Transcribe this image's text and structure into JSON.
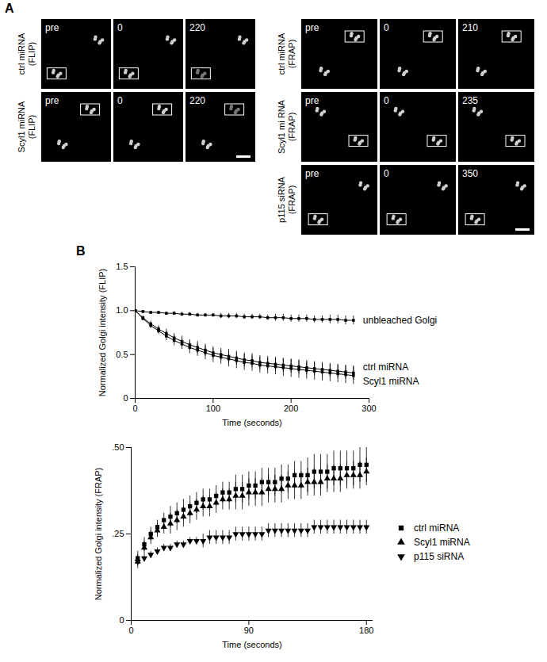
{
  "figure": {
    "panel_a": {
      "letter": "A",
      "groups": [
        {
          "rows": [
            {
              "label": "ctrl miRNA (FLIP)",
              "frames": [
                "pre",
                "0",
                "220"
              ]
            },
            {
              "label": "Scyl1 miRNA (FLIP)",
              "frames": [
                "pre",
                "0",
                "220"
              ]
            }
          ]
        },
        {
          "rows": [
            {
              "label": "ctrl miRNA (FRAP)",
              "frames": [
                "pre",
                "0",
                "210"
              ]
            },
            {
              "label": "Scyl1 mi RNA (FRAP)",
              "frames": [
                "pre",
                "0",
                "235"
              ]
            },
            {
              "label": "p115 siRNA (FRAP)",
              "frames": [
                "pre",
                "0",
                "350"
              ]
            }
          ]
        }
      ]
    },
    "panel_b": {
      "letter": "B"
    }
  },
  "chart_data": [
    {
      "type": "line",
      "x_label": "Time (seconds)",
      "y_label": "Normalized Golgi intensity (FLIP)",
      "x": [
        0,
        10,
        20,
        30,
        40,
        50,
        60,
        70,
        80,
        90,
        100,
        110,
        120,
        130,
        140,
        150,
        160,
        170,
        180,
        190,
        200,
        210,
        220,
        230,
        240,
        250,
        260,
        270,
        280
      ],
      "xlim": [
        0,
        300
      ],
      "xticks": [
        0,
        100,
        200,
        300
      ],
      "ylim": [
        0,
        1.5
      ],
      "yticks": [
        0,
        0.5,
        {
          "value": 1,
          "label": "1.0"
        },
        1.5
      ],
      "marker": "square",
      "series": [
        {
          "name": "unbleached Golgi",
          "color": "#000000",
          "values": [
            1.0,
            0.99,
            0.98,
            0.98,
            0.97,
            0.97,
            0.96,
            0.96,
            0.95,
            0.95,
            0.95,
            0.94,
            0.94,
            0.94,
            0.93,
            0.93,
            0.93,
            0.92,
            0.92,
            0.92,
            0.91,
            0.91,
            0.91,
            0.9,
            0.9,
            0.9,
            0.9,
            0.89,
            0.89
          ],
          "errors": [
            0,
            0.01,
            0.01,
            0.01,
            0.01,
            0.02,
            0.02,
            0.02,
            0.02,
            0.02,
            0.02,
            0.03,
            0.03,
            0.03,
            0.03,
            0.03,
            0.03,
            0.03,
            0.04,
            0.04,
            0.04,
            0.04,
            0.04,
            0.04,
            0.04,
            0.05,
            0.05,
            0.05,
            0.05
          ]
        },
        {
          "name": "ctrl miRNA",
          "color": "#000000",
          "values": [
            1.0,
            0.92,
            0.85,
            0.79,
            0.74,
            0.69,
            0.65,
            0.61,
            0.58,
            0.55,
            0.52,
            0.5,
            0.48,
            0.46,
            0.44,
            0.43,
            0.41,
            0.4,
            0.39,
            0.38,
            0.37,
            0.36,
            0.35,
            0.34,
            0.33,
            0.32,
            0.31,
            0.3,
            0.29
          ],
          "errors": [
            0,
            0.02,
            0.03,
            0.04,
            0.05,
            0.05,
            0.06,
            0.06,
            0.07,
            0.07,
            0.07,
            0.07,
            0.08,
            0.08,
            0.08,
            0.08,
            0.08,
            0.08,
            0.08,
            0.08,
            0.08,
            0.08,
            0.08,
            0.08,
            0.08,
            0.08,
            0.08,
            0.08,
            0.08
          ]
        },
        {
          "name": "Scyl1 miRNA",
          "color": "#000000",
          "values": [
            1.0,
            0.91,
            0.83,
            0.77,
            0.71,
            0.66,
            0.62,
            0.58,
            0.55,
            0.52,
            0.49,
            0.47,
            0.45,
            0.43,
            0.41,
            0.4,
            0.38,
            0.37,
            0.36,
            0.35,
            0.34,
            0.33,
            0.32,
            0.31,
            0.3,
            0.29,
            0.28,
            0.27,
            0.26
          ],
          "errors": [
            0,
            0.02,
            0.03,
            0.04,
            0.05,
            0.06,
            0.06,
            0.07,
            0.07,
            0.08,
            0.08,
            0.08,
            0.09,
            0.09,
            0.09,
            0.09,
            0.09,
            0.09,
            0.09,
            0.1,
            0.1,
            0.1,
            0.1,
            0.1,
            0.1,
            0.1,
            0.1,
            0.1,
            0.1
          ]
        }
      ]
    },
    {
      "type": "scatter",
      "x_label": "Time (seconds)",
      "y_label": "Normalized Golgi intensity (FRAP)",
      "x": [
        5,
        10,
        15,
        20,
        25,
        30,
        35,
        40,
        45,
        50,
        55,
        60,
        65,
        70,
        75,
        80,
        85,
        90,
        95,
        100,
        105,
        110,
        115,
        120,
        125,
        130,
        135,
        140,
        145,
        150,
        155,
        160,
        165,
        170,
        175,
        180
      ],
      "xlim": [
        0,
        185
      ],
      "xticks": [
        0,
        90,
        180
      ],
      "ylim": [
        0,
        0.5
      ],
      "yticks": [
        0,
        {
          "value": 0.25,
          "label": ".25"
        },
        {
          "value": 0.5,
          "label": ".50"
        }
      ],
      "legend": "right",
      "series": [
        {
          "name": "ctrl miRNA",
          "color": "#000000",
          "marker": "square",
          "values": [
            0.18,
            0.22,
            0.25,
            0.27,
            0.29,
            0.3,
            0.31,
            0.32,
            0.33,
            0.34,
            0.35,
            0.35,
            0.36,
            0.37,
            0.37,
            0.38,
            0.38,
            0.39,
            0.39,
            0.4,
            0.4,
            0.4,
            0.41,
            0.41,
            0.42,
            0.42,
            0.42,
            0.43,
            0.43,
            0.43,
            0.44,
            0.44,
            0.44,
            0.44,
            0.45,
            0.45
          ],
          "errors": [
            0.02,
            0.02,
            0.02,
            0.02,
            0.02,
            0.03,
            0.03,
            0.03,
            0.03,
            0.03,
            0.03,
            0.03,
            0.03,
            0.03,
            0.03,
            0.04,
            0.04,
            0.04,
            0.04,
            0.04,
            0.04,
            0.04,
            0.04,
            0.04,
            0.04,
            0.04,
            0.05,
            0.05,
            0.05,
            0.05,
            0.05,
            0.05,
            0.05,
            0.05,
            0.05,
            0.05
          ]
        },
        {
          "name": "Scyl1 miRNA",
          "color": "#000000",
          "marker": "triangle",
          "values": [
            0.17,
            0.21,
            0.24,
            0.26,
            0.27,
            0.28,
            0.29,
            0.3,
            0.31,
            0.32,
            0.33,
            0.33,
            0.34,
            0.35,
            0.35,
            0.36,
            0.36,
            0.37,
            0.37,
            0.37,
            0.38,
            0.38,
            0.38,
            0.39,
            0.39,
            0.39,
            0.4,
            0.4,
            0.4,
            0.41,
            0.41,
            0.41,
            0.42,
            0.42,
            0.42,
            0.43
          ],
          "errors": [
            0.02,
            0.02,
            0.02,
            0.02,
            0.02,
            0.03,
            0.03,
            0.03,
            0.03,
            0.03,
            0.03,
            0.03,
            0.03,
            0.03,
            0.03,
            0.04,
            0.04,
            0.04,
            0.04,
            0.04,
            0.04,
            0.04,
            0.04,
            0.04,
            0.04,
            0.04,
            0.04,
            0.04,
            0.04,
            0.04,
            0.04,
            0.04,
            0.04,
            0.04,
            0.04,
            0.04
          ]
        },
        {
          "name": "p115 siRNA",
          "color": "#000000",
          "marker": "triangle-down",
          "values": [
            0.17,
            0.18,
            0.19,
            0.2,
            0.21,
            0.21,
            0.22,
            0.22,
            0.23,
            0.23,
            0.23,
            0.24,
            0.24,
            0.24,
            0.24,
            0.25,
            0.25,
            0.25,
            0.25,
            0.25,
            0.26,
            0.26,
            0.26,
            0.26,
            0.26,
            0.26,
            0.26,
            0.27,
            0.27,
            0.27,
            0.27,
            0.27,
            0.27,
            0.27,
            0.27,
            0.27
          ],
          "errors": [
            0.01,
            0.01,
            0.01,
            0.01,
            0.01,
            0.01,
            0.01,
            0.01,
            0.01,
            0.01,
            0.02,
            0.02,
            0.02,
            0.02,
            0.02,
            0.02,
            0.02,
            0.02,
            0.02,
            0.02,
            0.02,
            0.02,
            0.02,
            0.02,
            0.02,
            0.02,
            0.02,
            0.02,
            0.02,
            0.02,
            0.02,
            0.02,
            0.02,
            0.02,
            0.02,
            0.02
          ]
        }
      ]
    }
  ]
}
